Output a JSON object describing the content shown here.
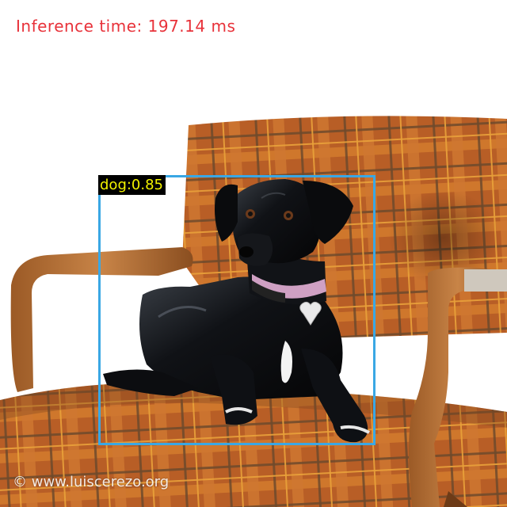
{
  "overlay": {
    "inference_text": "Inference time: 197.14 ms",
    "detections": [
      {
        "label_text": "dog:0.85",
        "class": "dog",
        "score": 0.85
      }
    ],
    "colors": {
      "inference_text": "#e8323a",
      "box_stroke": "#3aa7e4",
      "label_bg": "#000000",
      "label_text": "#f2f200"
    }
  },
  "photo": {
    "subject": "black dog lying on a plaid armchair",
    "watermark": "© www.luiscerezo.org"
  }
}
